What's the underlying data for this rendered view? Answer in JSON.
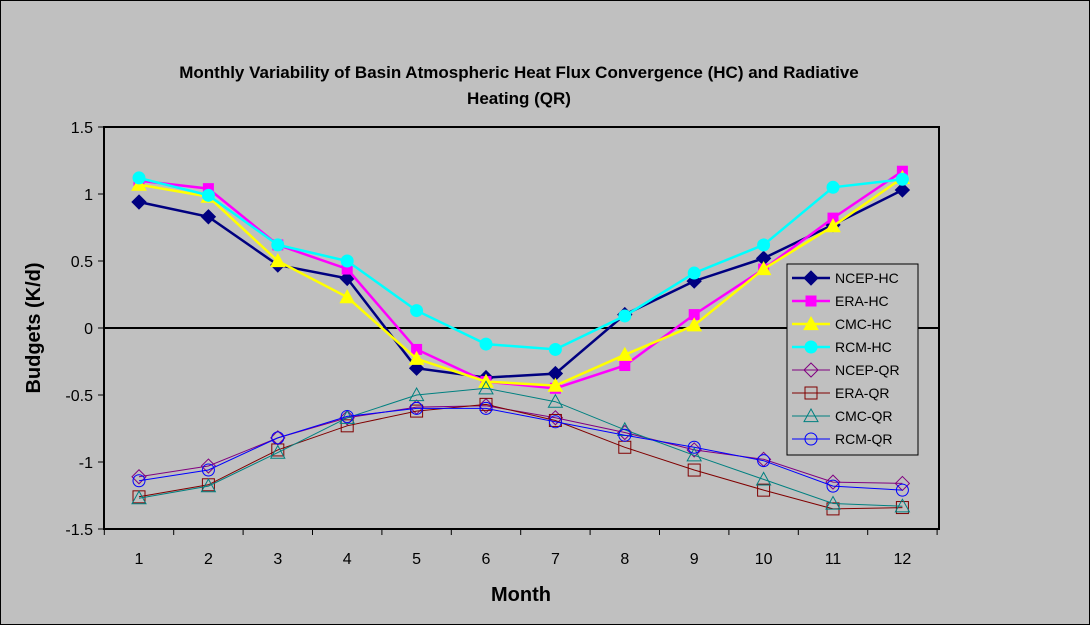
{
  "chart_data": {
    "type": "line",
    "title_lines": [
      "Monthly Variability of Basin Atmospheric Heat Flux Convergence (HC) and Radiative",
      "Heating (QR)"
    ],
    "xlabel": "Month",
    "ylabel": "Budgets (K/d)",
    "x": [
      1,
      2,
      3,
      4,
      5,
      6,
      7,
      8,
      9,
      10,
      11,
      12
    ],
    "x_tick_labels": [
      "1",
      "2",
      "3",
      "4",
      "5",
      "6",
      "7",
      "8",
      "9",
      "10",
      "11",
      "12"
    ],
    "ylim": [
      -1.5,
      1.5
    ],
    "y_ticks": [
      1.5,
      1,
      0.5,
      0,
      -0.5,
      -1,
      -1.5
    ],
    "y_tick_labels": [
      "1.5",
      "1",
      "0.5",
      "0",
      "-0.5",
      "-1",
      "-1.5"
    ],
    "grid": false,
    "zero_line": true,
    "plot_background": "#c0c0c0",
    "page_background": "#c0c0c0",
    "legend_position": "right",
    "series": [
      {
        "name": "NCEP-HC",
        "color": "#000080",
        "marker": "diamond-filled",
        "values": [
          0.94,
          0.83,
          0.47,
          0.37,
          -0.3,
          -0.37,
          -0.34,
          0.1,
          0.35,
          0.52,
          0.77,
          1.03
        ]
      },
      {
        "name": "ERA-HC",
        "color": "#ff00ff",
        "marker": "square-filled",
        "values": [
          1.1,
          1.04,
          0.62,
          0.44,
          -0.16,
          -0.4,
          -0.45,
          -0.28,
          0.1,
          0.44,
          0.82,
          1.17
        ]
      },
      {
        "name": "CMC-HC",
        "color": "#ffff00",
        "marker": "triangle-filled",
        "values": [
          1.07,
          0.98,
          0.5,
          0.23,
          -0.23,
          -0.4,
          -0.43,
          -0.2,
          0.02,
          0.44,
          0.76,
          1.12
        ]
      },
      {
        "name": "RCM-HC",
        "color": "#00ffff",
        "marker": "circle-filled",
        "values": [
          1.12,
          0.99,
          0.62,
          0.5,
          0.13,
          -0.12,
          -0.16,
          0.09,
          0.41,
          0.62,
          1.05,
          1.11
        ]
      },
      {
        "name": "NCEP-QR",
        "color": "#800080",
        "marker": "diamond-open",
        "values": [
          -1.11,
          -1.03,
          -0.82,
          -0.67,
          -0.59,
          -0.58,
          -0.67,
          -0.78,
          -0.91,
          -0.98,
          -1.15,
          -1.16
        ]
      },
      {
        "name": "ERA-QR",
        "color": "#800000",
        "marker": "square-open",
        "values": [
          -1.26,
          -1.17,
          -0.91,
          -0.73,
          -0.62,
          -0.57,
          -0.69,
          -0.89,
          -1.06,
          -1.21,
          -1.35,
          -1.34
        ]
      },
      {
        "name": "CMC-QR",
        "color": "#008080",
        "marker": "triangle-open",
        "values": [
          -1.27,
          -1.18,
          -0.93,
          -0.67,
          -0.5,
          -0.45,
          -0.55,
          -0.76,
          -0.95,
          -1.13,
          -1.31,
          -1.33
        ]
      },
      {
        "name": "RCM-QR",
        "color": "#0000ff",
        "marker": "circle-open",
        "values": [
          -1.14,
          -1.06,
          -0.82,
          -0.66,
          -0.6,
          -0.6,
          -0.7,
          -0.8,
          -0.89,
          -0.99,
          -1.18,
          -1.21
        ]
      }
    ]
  }
}
